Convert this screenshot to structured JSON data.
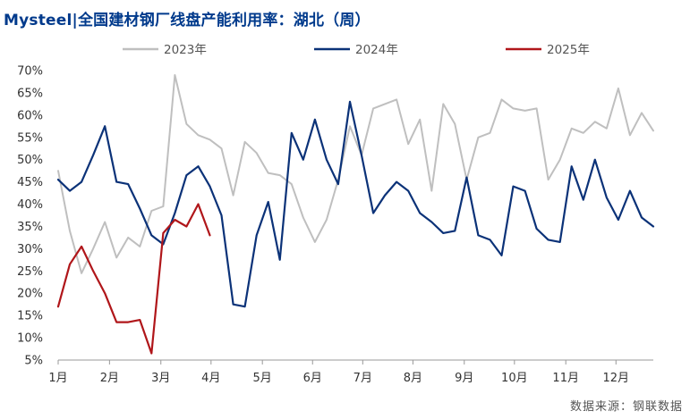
{
  "title": "Mysteel|全国建材钢厂线盘产能利用率：湖北（周）",
  "source": "数据来源：钢联数据",
  "chart_data": {
    "type": "line",
    "title": "Mysteel|全国建材钢厂线盘产能利用率：湖北（周）",
    "xlabel": "",
    "ylabel": "",
    "ylim": [
      5,
      70
    ],
    "yticks": [
      "5%",
      "10%",
      "15%",
      "20%",
      "25%",
      "30%",
      "35%",
      "40%",
      "45%",
      "50%",
      "55%",
      "60%",
      "65%",
      "70%"
    ],
    "xticks": [
      "1月",
      "2月",
      "3月",
      "4月",
      "5月",
      "6月",
      "7月",
      "8月",
      "9月",
      "10月",
      "11月",
      "12月"
    ],
    "x_unit": "week",
    "grid": false,
    "legend_position": "top",
    "series": [
      {
        "name": "2023年",
        "color": "#bfbfbf",
        "values": [
          47.5,
          34,
          24.5,
          30,
          36,
          28,
          32.5,
          30.5,
          38.5,
          39.5,
          69,
          58,
          55.5,
          54.5,
          52.5,
          42,
          54,
          51.5,
          47,
          46.5,
          44.5,
          37,
          31.5,
          36.5,
          45.5,
          57.5,
          51,
          61.5,
          62.5,
          63.5,
          53.5,
          59,
          43,
          62.5,
          58,
          45.5,
          55,
          56,
          63.5,
          61.5,
          61,
          61.5,
          45.5,
          50,
          57,
          56,
          58.5,
          57,
          66,
          55.5,
          60.5,
          56.5
        ]
      },
      {
        "name": "2024年",
        "color": "#0b3278",
        "values": [
          45.5,
          43,
          45,
          51,
          57.5,
          45,
          44.5,
          39,
          33,
          31,
          38,
          46.5,
          48.5,
          44,
          37.5,
          17.5,
          17,
          33,
          40.5,
          27.5,
          56,
          50,
          59,
          50,
          44.5,
          63,
          51,
          38,
          42,
          45,
          43,
          38,
          36,
          33.5,
          34,
          46,
          33,
          32,
          28.5,
          44,
          43,
          34.5,
          32,
          31.5,
          48.5,
          41,
          50,
          41.5,
          36.5,
          43,
          37,
          35
        ]
      },
      {
        "name": "2025年",
        "color": "#b0161a",
        "values": [
          17,
          26.5,
          30.5,
          25,
          20,
          13.5,
          13.5,
          14,
          6.5,
          33.5,
          36.5,
          35,
          40,
          33
        ]
      }
    ]
  }
}
